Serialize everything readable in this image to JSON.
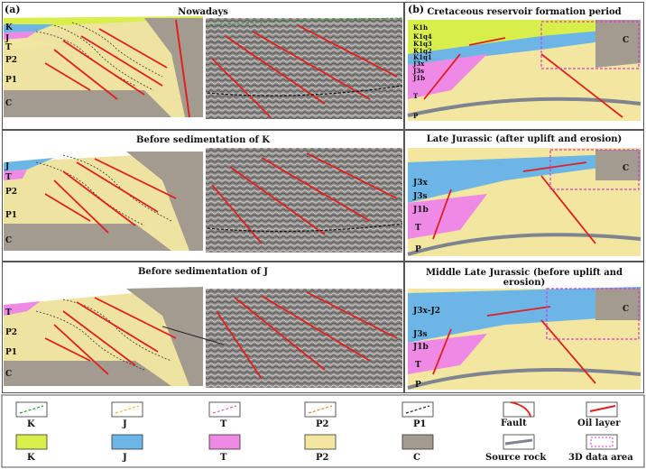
{
  "panels": {
    "a_label": "(a)",
    "b_label": "(b)"
  },
  "left_titles": [
    "Nowadays",
    "Before sedimentation of K",
    "Before sedimentation of J"
  ],
  "right_titles": [
    "Cretaceous reservoir formation period",
    "Late Jurassic (after uplift and erosion)",
    "Middle Late Jurassic (before uplift and erosion)"
  ],
  "left_strata": {
    "row1": [
      "K",
      "J",
      "T",
      "P2",
      "P1",
      "C"
    ],
    "row2": [
      "J",
      "T",
      "P2",
      "P1",
      "C"
    ],
    "row3": [
      "T",
      "P2",
      "P1",
      "C"
    ]
  },
  "right_strata": {
    "row1": [
      "K1h",
      "K1q4",
      "K1q3",
      "K1q2",
      "K1q1",
      "J3x",
      "J3s",
      "J1b",
      "T",
      "P"
    ],
    "row1_c": "C",
    "row2": [
      "J3x",
      "J3s",
      "J1b",
      "T",
      "P"
    ],
    "row2_c": "C",
    "row3": [
      "J3x-J2",
      "J3s",
      "J1b",
      "T",
      "P"
    ],
    "row3_c": "C"
  },
  "legend": {
    "line_items": [
      "K",
      "J",
      "T",
      "P2",
      "P1"
    ],
    "line_colors": [
      "#2e9a2e",
      "#e0c23a",
      "#e66a8a",
      "#e08a2e",
      "#222222"
    ],
    "fill_items": [
      "K",
      "J",
      "T",
      "P2",
      "C"
    ],
    "fill_colors": [
      "#d8ee4a",
      "#6bb6e6",
      "#ee8ae6",
      "#f2e6a0",
      "#a39a90"
    ],
    "fault": "Fault",
    "oil_layer": "Oil layer",
    "source_rock": "Source rock",
    "data_area": "3D data area"
  }
}
